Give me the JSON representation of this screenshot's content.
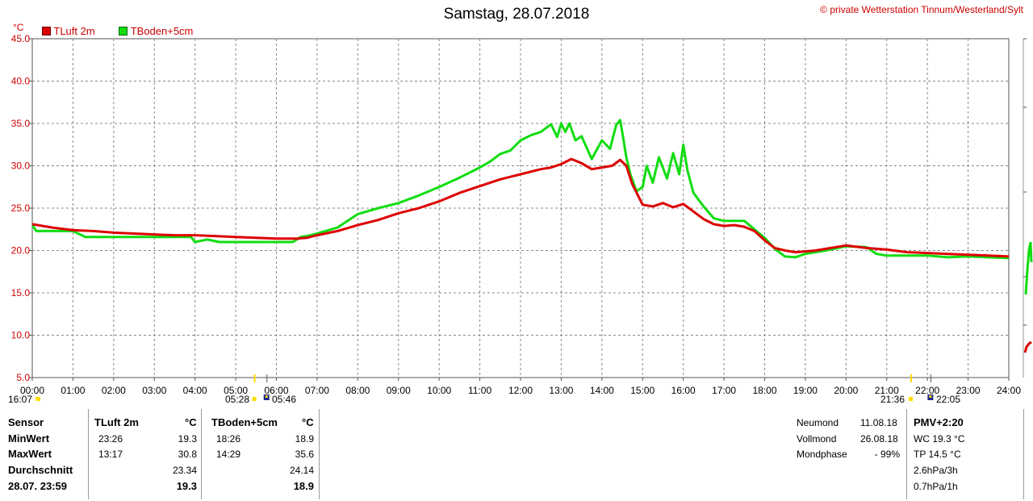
{
  "header": {
    "title": "Samstag, 28.07.2018",
    "copyright": "© private Wetterstation Tinnum/Westerland/Sylt"
  },
  "colors": {
    "tluft": "#dd0000",
    "tboden": "#11dd11",
    "grid": "#888888",
    "axis_text": "#cc0000"
  },
  "chart_data": {
    "type": "line",
    "ylabel": "°C",
    "xlabel": "",
    "ylim": [
      5,
      45
    ],
    "xlim": [
      0,
      24
    ],
    "yticks": [
      "5.0",
      "10.0",
      "15.0",
      "20.0",
      "25.0",
      "30.0",
      "35.0",
      "40.0",
      "45.0"
    ],
    "xticks": [
      "00:00",
      "01:00",
      "02:00",
      "03:00",
      "04:00",
      "05:00",
      "06:00",
      "07:00",
      "08:00",
      "09:00",
      "10:00",
      "11:00",
      "12:00",
      "13:00",
      "14:00",
      "15:00",
      "16:00",
      "17:00",
      "18:00",
      "19:00",
      "20:00",
      "21:00",
      "22:00",
      "23:00",
      "24:00"
    ],
    "grid": true,
    "legend": "top-left",
    "series": [
      {
        "name": "TLuft 2m",
        "color": "#dd0000",
        "x": [
          0,
          0.5,
          1,
          1.5,
          2,
          2.5,
          3,
          3.5,
          4,
          4.5,
          5,
          5.5,
          6,
          6.5,
          6.75,
          7,
          7.5,
          8,
          8.5,
          9,
          9.5,
          10,
          10.5,
          11,
          11.5,
          12,
          12.5,
          12.75,
          13,
          13.25,
          13.5,
          13.75,
          14,
          14.25,
          14.45,
          14.6,
          14.75,
          15,
          15.25,
          15.5,
          15.75,
          16,
          16.25,
          16.5,
          16.75,
          17,
          17.25,
          17.5,
          17.75,
          18,
          18.25,
          18.5,
          18.75,
          19,
          19.25,
          19.5,
          19.75,
          20,
          20.5,
          21,
          21.5,
          22,
          22.5,
          23,
          23.5,
          24
        ],
        "y": [
          23.1,
          22.7,
          22.4,
          22.3,
          22.1,
          22.0,
          21.9,
          21.8,
          21.8,
          21.7,
          21.6,
          21.5,
          21.4,
          21.4,
          21.5,
          21.8,
          22.3,
          23.0,
          23.6,
          24.4,
          25.0,
          25.8,
          26.8,
          27.6,
          28.4,
          29.0,
          29.6,
          29.8,
          30.2,
          30.8,
          30.3,
          29.6,
          29.8,
          30.0,
          30.7,
          30.0,
          27.8,
          25.4,
          25.2,
          25.6,
          25.1,
          25.5,
          24.6,
          23.7,
          23.1,
          22.9,
          23.0,
          22.8,
          22.3,
          21.2,
          20.3,
          20.0,
          19.8,
          19.9,
          20.0,
          20.2,
          20.4,
          20.6,
          20.3,
          20.1,
          19.8,
          19.7,
          19.6,
          19.5,
          19.4,
          19.3
        ]
      },
      {
        "name": "TBoden+5cm",
        "color": "#11dd11",
        "x": [
          0,
          0.1,
          0.5,
          1,
          1.3,
          1.5,
          2,
          2.5,
          3,
          3.5,
          3.9,
          4.0,
          4.3,
          4.6,
          5,
          5.5,
          6,
          6.4,
          6.6,
          6.75,
          7,
          7.5,
          7.75,
          8,
          8.5,
          9,
          9.5,
          10,
          10.5,
          11,
          11.25,
          11.5,
          11.75,
          12,
          12.25,
          12.5,
          12.75,
          12.9,
          13.0,
          13.1,
          13.2,
          13.35,
          13.5,
          13.75,
          14,
          14.2,
          14.35,
          14.45,
          14.5,
          14.6,
          14.7,
          14.85,
          15,
          15.1,
          15.25,
          15.4,
          15.6,
          15.75,
          15.9,
          16,
          16.1,
          16.25,
          16.5,
          16.75,
          17,
          17.25,
          17.5,
          17.75,
          18,
          18.25,
          18.5,
          18.75,
          19,
          19.5,
          20,
          20.5,
          20.75,
          21,
          21.5,
          22,
          22.5,
          23,
          23.5,
          24
        ],
        "y": [
          23.0,
          22.3,
          22.3,
          22.3,
          21.6,
          21.6,
          21.6,
          21.6,
          21.6,
          21.6,
          21.6,
          21.0,
          21.3,
          21.0,
          21.0,
          21.0,
          21.0,
          21.0,
          21.6,
          21.7,
          22.0,
          22.7,
          23.5,
          24.3,
          25.0,
          25.6,
          26.5,
          27.5,
          28.6,
          29.8,
          30.5,
          31.4,
          31.8,
          33.0,
          33.6,
          34.0,
          34.9,
          33.4,
          35.0,
          34.0,
          35.0,
          33.0,
          33.5,
          30.8,
          33.0,
          32.0,
          34.8,
          35.4,
          34.0,
          31.0,
          29.0,
          27.0,
          27.5,
          30.0,
          28.0,
          31.0,
          28.5,
          31.5,
          29.0,
          32.5,
          29.5,
          26.8,
          25.2,
          23.8,
          23.5,
          23.5,
          23.5,
          22.5,
          21.5,
          20.2,
          19.3,
          19.2,
          19.6,
          20.0,
          20.5,
          20.4,
          19.6,
          19.4,
          19.4,
          19.4,
          19.2,
          19.3,
          19.2,
          19.1
        ]
      }
    ]
  },
  "sun_moon_times": {
    "sunrise": "05:28",
    "moonset": "05:46",
    "moonrise_prev": "16:07",
    "sunset": "21:36",
    "moonrise": "22:05"
  },
  "table": {
    "headers": {
      "sensor": "Sensor",
      "tluft": "TLuft 2m",
      "tboden": "TBoden+5cm",
      "unit": "°C"
    },
    "rows": {
      "min": {
        "label": "MinWert",
        "t1_time": "23:26",
        "t1_val": "19.3",
        "t2_time": "18:26",
        "t2_val": "18.9"
      },
      "max": {
        "label": "MaxWert",
        "t1_time": "13:17",
        "t1_val": "30.8",
        "t2_time": "14:29",
        "t2_val": "35.6"
      },
      "avg": {
        "label": "Durchschnitt",
        "t1_val": "23.34",
        "t2_val": "24.14"
      },
      "cur": {
        "label": "28.07. 23:59",
        "t1_val": "19.3",
        "t2_val": "18.9"
      }
    }
  },
  "moon": {
    "neumond_label": "Neumond",
    "neumond_date": "11.08.18",
    "vollmond_label": "Vollmond",
    "vollmond_date": "26.08.18",
    "phase_label": "Mondphase",
    "phase_value": "- 99%"
  },
  "pmv": {
    "title": "PMV+2:20",
    "wc": "WC 19.3 °C",
    "tp": "TP 14.5 °C",
    "p3h": "2.6hPa/3h",
    "p1h": "0.7hPa/1h"
  }
}
